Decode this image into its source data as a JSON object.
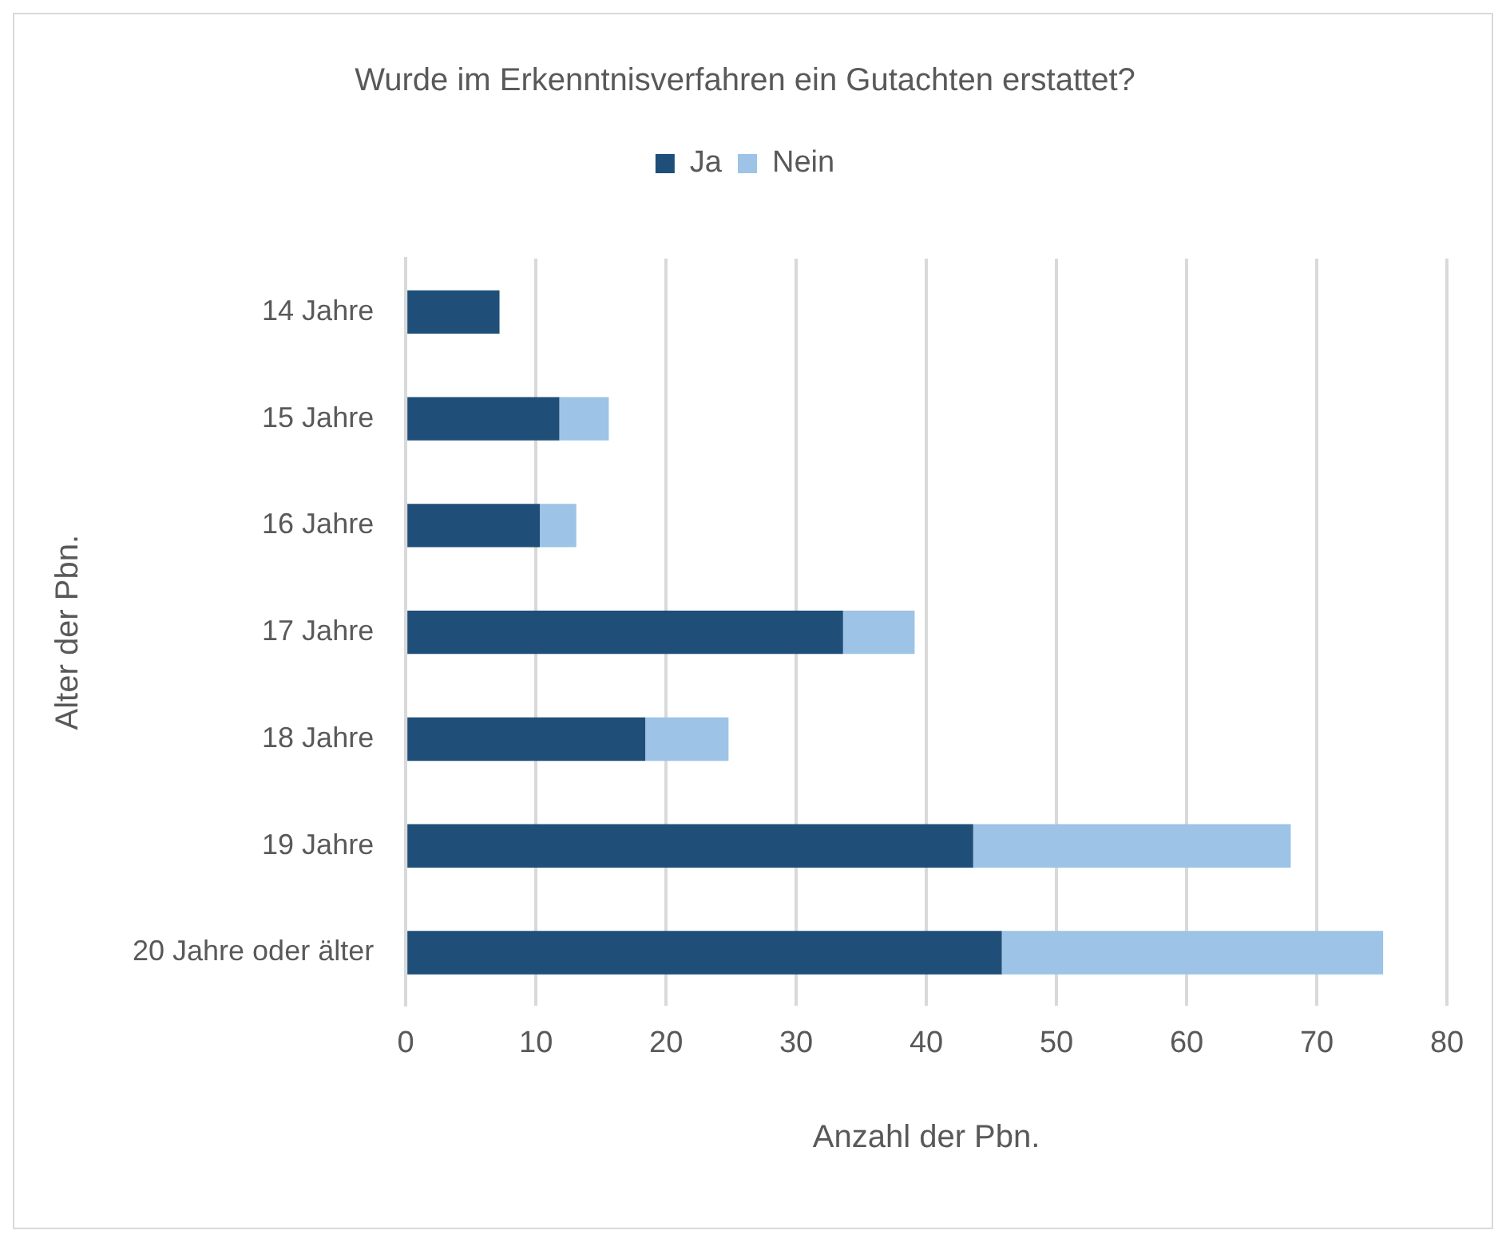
{
  "chart_data": {
    "type": "bar",
    "orientation": "horizontal",
    "stacked": true,
    "title": "Wurde im Erkenntnisverfahren ein Gutachten erstattet?",
    "xlabel": "Anzahl der Pbn.",
    "ylabel": "Alter der Pbn.",
    "categories": [
      "14 Jahre",
      "15 Jahre",
      "16 Jahre",
      "17 Jahre",
      "18 Jahre",
      "19 Jahre",
      "20 Jahre oder älter"
    ],
    "series": [
      {
        "name": "Ja",
        "color": "#1f4e79",
        "values": [
          7.2,
          11.8,
          10.3,
          33.6,
          18.4,
          43.6,
          45.8
        ]
      },
      {
        "name": "Nein",
        "color": "#9dc3e6",
        "values": [
          null,
          3.8,
          2.8,
          5.5,
          6.4,
          24.4,
          29.3
        ]
      }
    ],
    "xlim": [
      0,
      80
    ],
    "xticks": [
      0,
      10,
      20,
      30,
      40,
      50,
      60,
      70,
      80
    ],
    "grid": "x",
    "legend": "top"
  }
}
